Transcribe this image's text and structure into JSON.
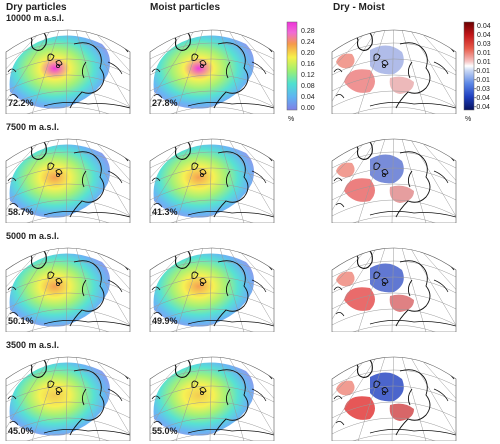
{
  "columns": {
    "dry": "Dry particles",
    "moist": "Moist particles",
    "diff": "Dry - Moist"
  },
  "rows": [
    {
      "alt": "10000 m a.s.l.",
      "dry_pct": "72.2%",
      "moist_pct": "27.8%"
    },
    {
      "alt": "7500 m a.s.l.",
      "dry_pct": "58.7%",
      "moist_pct": "41.3%"
    },
    {
      "alt": "5000 m a.s.l.",
      "dry_pct": "50.1%",
      "moist_pct": "49.9%"
    },
    {
      "alt": "3500 m a.s.l.",
      "dry_pct": "45.0%",
      "moist_pct": "55.0%"
    }
  ],
  "colorbar_density": {
    "ticks": [
      "0.28",
      "0.24",
      "0.20",
      "0.16",
      "0.12",
      "0.08",
      "0.04",
      "0.00"
    ],
    "unit": "%"
  },
  "colorbar_diff": {
    "ticks": [
      "0.04",
      "0.04",
      "0.03",
      "0.01",
      "0.01",
      "-0.01",
      "-0.01",
      "-0.03",
      "-0.04",
      "-0.04"
    ],
    "unit": "%"
  }
}
